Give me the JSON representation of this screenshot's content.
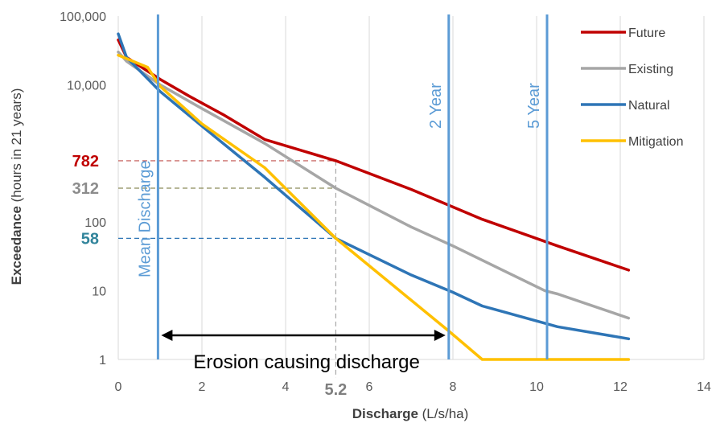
{
  "chart_data": {
    "type": "line",
    "xlabel_bold": "Discharge",
    "xlabel_rest": " (L/s/ha)",
    "ylabel_bold": "Exceedance",
    "ylabel_rest": " (hours in 21 years)",
    "xlim": [
      0,
      14
    ],
    "x_ticks": [
      0,
      2,
      4,
      6,
      8,
      10,
      12,
      14
    ],
    "x_tick_labels": [
      "0",
      "2",
      "4",
      "6",
      "8",
      "10",
      "12",
      "14"
    ],
    "y_scale": "log",
    "ylim": [
      1,
      100000
    ],
    "y_ticks": [
      1,
      10,
      100,
      1000,
      10000,
      100000
    ],
    "y_tick_labels": [
      "1",
      "10",
      "100",
      "",
      "10,000",
      "100,000"
    ],
    "gridlines": "vertical",
    "legend_position": "top-right",
    "series": [
      {
        "name": "Future",
        "color": "#C00000",
        "points": [
          [
            0,
            45000
          ],
          [
            0.2,
            25000
          ],
          [
            1,
            12000
          ],
          [
            1.7,
            6800
          ],
          [
            2.5,
            3700
          ],
          [
            3.5,
            1600
          ],
          [
            5.2,
            782
          ],
          [
            7,
            300
          ],
          [
            8.7,
            110
          ],
          [
            10.5,
            45
          ],
          [
            12.2,
            20
          ]
        ]
      },
      {
        "name": "Existing",
        "color": "#A6A6A6",
        "points": [
          [
            0,
            30000
          ],
          [
            0.2,
            22000
          ],
          [
            1,
            10000
          ],
          [
            2,
            4500
          ],
          [
            3.5,
            1400
          ],
          [
            5.2,
            312
          ],
          [
            7,
            85
          ],
          [
            8,
            45
          ],
          [
            10.2,
            10
          ],
          [
            10.5,
            9
          ],
          [
            12.2,
            4
          ]
        ]
      },
      {
        "name": "Natural",
        "color": "#2E75B6",
        "points": [
          [
            0,
            55000
          ],
          [
            0.2,
            25000
          ],
          [
            1,
            8000
          ],
          [
            2,
            2500
          ],
          [
            3.5,
            450
          ],
          [
            5.2,
            58
          ],
          [
            7,
            17
          ],
          [
            8,
            9.5
          ],
          [
            8.7,
            6
          ],
          [
            10.5,
            3
          ],
          [
            12.2,
            2
          ]
        ]
      },
      {
        "name": "Mitigation",
        "color": "#FFC000",
        "points": [
          [
            0,
            27000
          ],
          [
            0.7,
            18000
          ],
          [
            1,
            9500
          ],
          [
            2,
            2700
          ],
          [
            3.5,
            620
          ],
          [
            5.2,
            58
          ],
          [
            6.5,
            13
          ],
          [
            7.9,
            2.6
          ],
          [
            8.7,
            1
          ],
          [
            12.2,
            1
          ]
        ]
      }
    ],
    "vertical_lines": [
      {
        "label": "Mean Discharge",
        "x": 0.95,
        "color": "#5B9BD5"
      },
      {
        "label": "2 Year",
        "x": 7.9,
        "color": "#5B9BD5"
      },
      {
        "label": "5 Year",
        "x": 10.25,
        "color": "#5B9BD5"
      }
    ],
    "reference_lines": [
      {
        "label": "782",
        "y": 782,
        "x_end": 5.2,
        "color": "#C0504D",
        "label_color": "#C00000"
      },
      {
        "label": "312",
        "y": 312,
        "x_end": 5.2,
        "color": "#8C8C5A",
        "label_color": "#8C8C8C"
      },
      {
        "label": "58",
        "y": 58,
        "x_end": 5.2,
        "color": "#2E75B6",
        "label_color": "#31849B"
      }
    ],
    "marker_x": {
      "label": "5.2",
      "x": 5.2,
      "color": "#A6A6A6",
      "label_color": "#7F7F7F"
    },
    "range_annotation": {
      "label": "Erosion causing discharge",
      "x_from": 0.95,
      "x_to": 7.9
    }
  }
}
